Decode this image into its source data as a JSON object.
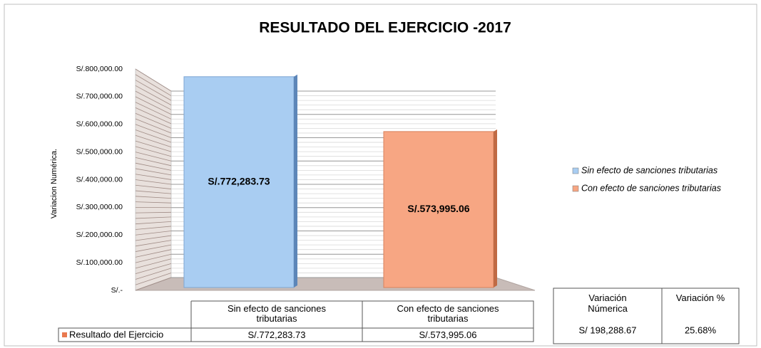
{
  "chart_data": {
    "type": "bar",
    "title": "RESULTADO DEL EJERCICIO -2017",
    "y_label": "Variacion Numérica.",
    "categories": [
      "Sin efecto de sanciones tributarias",
      "Con efecto de sanciones tributarias"
    ],
    "point_colors": [
      "#a9cdf2",
      "#f7a683"
    ],
    "series": [
      {
        "name": "Resultado del Ejercicio",
        "color": "#e9794f",
        "values": [
          772283.73,
          573995.06
        ],
        "value_labels": [
          "S/.772,283.73",
          "S/.573,995.06"
        ]
      }
    ],
    "ylim": [
      0,
      800000
    ],
    "yticks": [
      {
        "value": 0,
        "label": "S/.-"
      },
      {
        "value": 100000,
        "label": "S/.100,000.00"
      },
      {
        "value": 200000,
        "label": "S/.200,000.00"
      },
      {
        "value": 300000,
        "label": "S/.300,000.00"
      },
      {
        "value": 400000,
        "label": "S/.400,000.00"
      },
      {
        "value": 500000,
        "label": "S/.500,000.00"
      },
      {
        "value": 600000,
        "label": "S/.600,000.00"
      },
      {
        "value": 700000,
        "label": "S/.700,000.00"
      },
      {
        "value": 800000,
        "label": "S/.800,000.00"
      }
    ],
    "grid": true,
    "legend": "right",
    "side_table": {
      "headers": [
        "Variación Númerica",
        "Variación %"
      ],
      "values": [
        "S/ 198,288.67",
        "25.68%"
      ]
    }
  }
}
